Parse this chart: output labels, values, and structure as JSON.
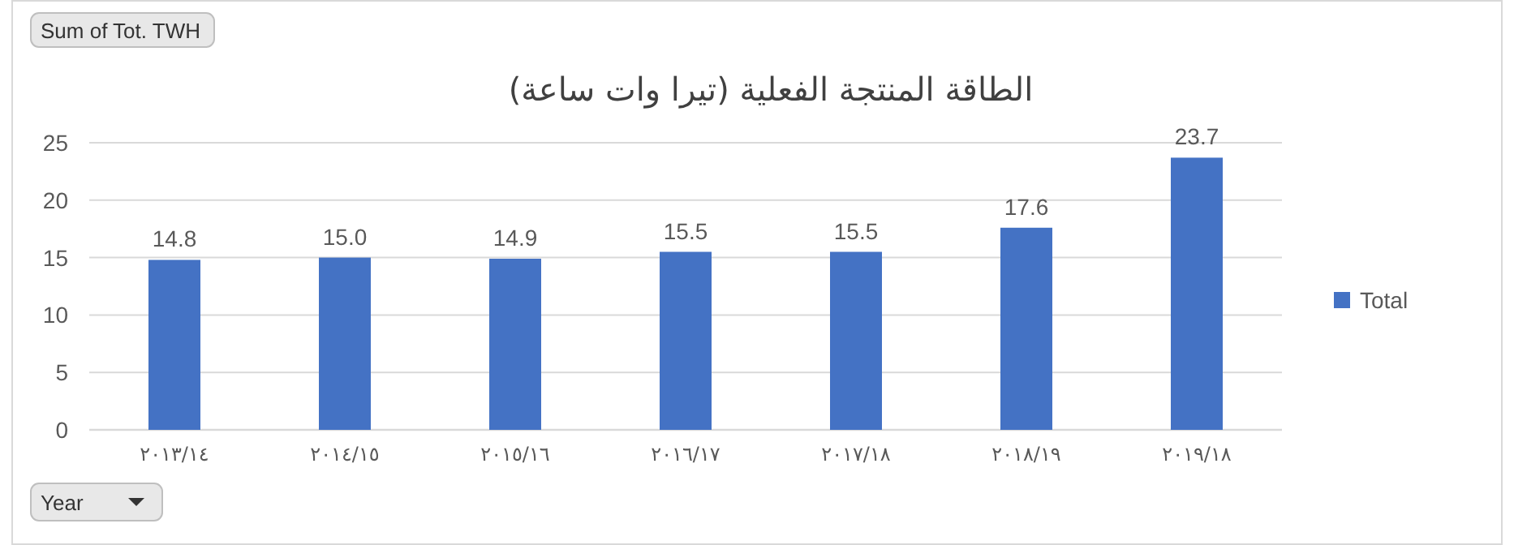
{
  "chart_data": {
    "type": "bar",
    "title": "الطاقة المنتجة الفعلية (تيرا وات ساعة)",
    "categories": [
      "٢٠١٣/١٤",
      "٢٠١٤/١٥",
      "٢٠١٥/١٦",
      "٢٠١٦/١٧",
      "٢٠١٧/١٨",
      "٢٠١٨/١٩",
      "٢٠١٩/١٨"
    ],
    "series": [
      {
        "name": "Total",
        "color": "#4472c4",
        "values": [
          14.8,
          15.0,
          14.9,
          15.5,
          15.5,
          17.6,
          23.7
        ]
      }
    ],
    "value_labels": [
      "14.8",
      "15.0",
      "14.9",
      "15.5",
      "15.5",
      "17.6",
      "23.7"
    ],
    "ylim": [
      0,
      25
    ],
    "yticks": [
      0,
      5,
      10,
      15,
      20,
      25
    ],
    "grid": "y",
    "legend": "right",
    "annotations": [
      "Sum of Tot. TWH",
      "Year"
    ]
  }
}
